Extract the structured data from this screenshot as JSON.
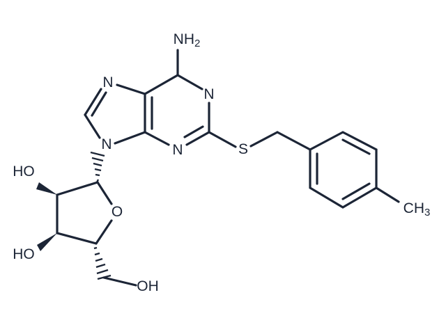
{
  "atoms": [
    {
      "text": "NH",
      "sub": "2"
    },
    {
      "text": "N"
    },
    {
      "text": "N"
    },
    {
      "text": "N"
    },
    {
      "text": "N"
    },
    {
      "text": "S"
    },
    {
      "text": "CH",
      "sub": "3"
    },
    {
      "text": "O"
    },
    {
      "text": "HO"
    },
    {
      "text": "HO"
    },
    {
      "text": "OH"
    }
  ]
}
